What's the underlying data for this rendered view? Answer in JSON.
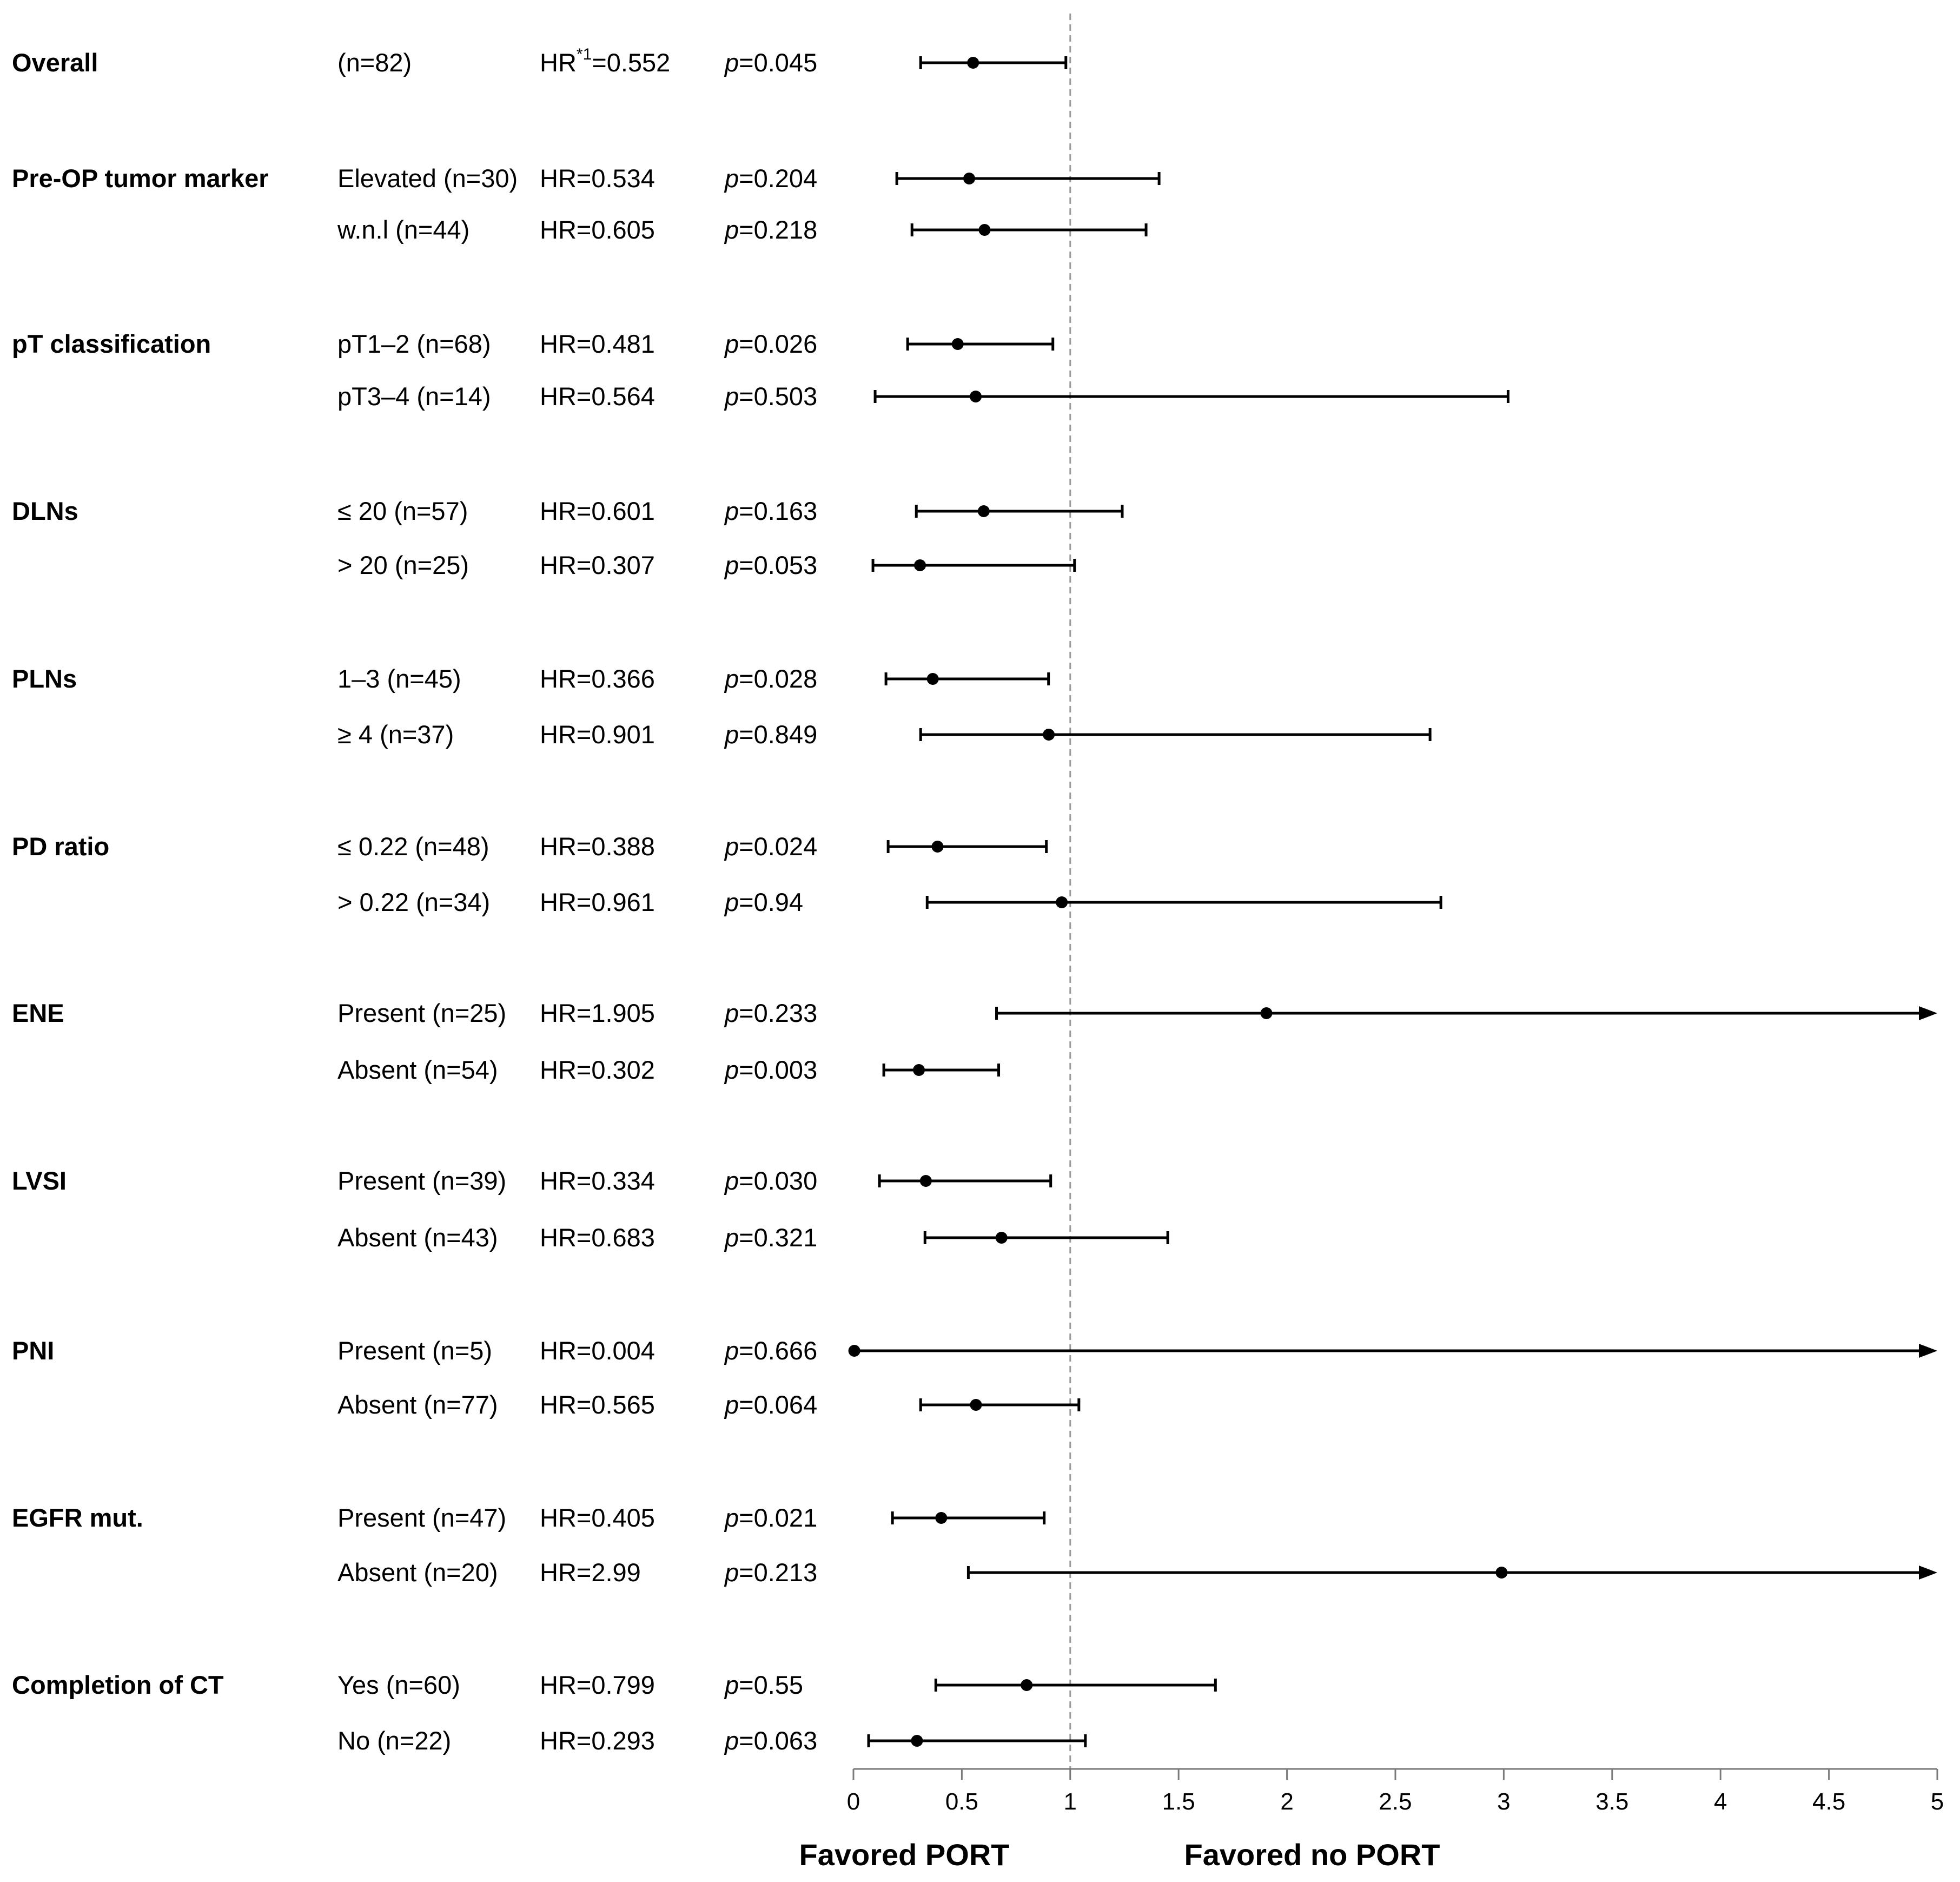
{
  "chart_data": {
    "type": "forest",
    "x_axis": {
      "min": 0,
      "max": 5,
      "ticks": [
        0,
        0.5,
        1,
        1.5,
        2,
        2.5,
        3,
        3.5,
        4,
        4.5,
        5
      ],
      "tick_labels": [
        "0",
        "0.5",
        "1",
        "1.5",
        "2",
        "2.5",
        "3",
        "3.5",
        "4",
        "4.5",
        "5"
      ],
      "reference_line": 1
    },
    "side_labels": {
      "left": "Favored PORT",
      "right": "Favored no PORT"
    },
    "hr_superscript": "*1",
    "groups": [
      {
        "label": "Overall",
        "rows": [
          {
            "subgroup": "(n=82)",
            "hr_text": "HR",
            "hr_text_after": "=0.552",
            "p_text": "=0.045",
            "hr": 0.552,
            "ci_low": 0.31,
            "ci_high": 0.98,
            "arrow": false
          }
        ]
      },
      {
        "label": "Pre-OP tumor marker",
        "rows": [
          {
            "subgroup": "Elevated (n=30)",
            "hr_text": "HR=0.534",
            "p_text": "=0.204",
            "hr": 0.534,
            "ci_low": 0.2,
            "ci_high": 1.41,
            "arrow": false
          },
          {
            "subgroup": "w.n.l (n=44)",
            "hr_text": "HR=0.605",
            "p_text": "=0.218",
            "hr": 0.605,
            "ci_low": 0.27,
            "ci_high": 1.35,
            "arrow": false
          }
        ]
      },
      {
        "label": "pT classification",
        "rows": [
          {
            "subgroup": "pT1–2 (n=68)",
            "hr_text": "HR=0.481",
            "p_text": "=0.026",
            "hr": 0.481,
            "ci_low": 0.25,
            "ci_high": 0.92,
            "arrow": false
          },
          {
            "subgroup": "pT3–4 (n=14)",
            "hr_text": "HR=0.564",
            "p_text": "=0.503",
            "hr": 0.564,
            "ci_low": 0.1,
            "ci_high": 3.02,
            "arrow": false
          }
        ]
      },
      {
        "label": "DLNs",
        "rows": [
          {
            "subgroup": "≤ 20 (n=57)",
            "hr_text": "HR=0.601",
            "p_text": "=0.163",
            "hr": 0.601,
            "ci_low": 0.29,
            "ci_high": 1.24,
            "arrow": false
          },
          {
            "subgroup": "> 20 (n=25)",
            "hr_text": "HR=0.307",
            "p_text": "=0.053",
            "hr": 0.307,
            "ci_low": 0.09,
            "ci_high": 1.02,
            "arrow": false
          }
        ]
      },
      {
        "label": "PLNs",
        "rows": [
          {
            "subgroup": "1–3 (n=45)",
            "hr_text": "HR=0.366",
            "p_text": "=0.028",
            "hr": 0.366,
            "ci_low": 0.15,
            "ci_high": 0.9,
            "arrow": false
          },
          {
            "subgroup": "≥ 4 (n=37)",
            "hr_text": "HR=0.901",
            "p_text": "=0.849",
            "hr": 0.901,
            "ci_low": 0.31,
            "ci_high": 2.66,
            "arrow": false
          }
        ]
      },
      {
        "label": "PD ratio",
        "rows": [
          {
            "subgroup": "≤ 0.22 (n=48)",
            "hr_text": "HR=0.388",
            "p_text": "=0.024",
            "hr": 0.388,
            "ci_low": 0.16,
            "ci_high": 0.89,
            "arrow": false
          },
          {
            "subgroup": "> 0.22 (n=34)",
            "hr_text": "HR=0.961",
            "p_text": "=0.94",
            "hr": 0.961,
            "ci_low": 0.34,
            "ci_high": 2.71,
            "arrow": false
          }
        ]
      },
      {
        "label": "ENE",
        "rows": [
          {
            "subgroup": "Present (n=25)",
            "hr_text": "HR=1.905",
            "p_text": "=0.233",
            "hr": 1.905,
            "ci_low": 0.66,
            "ci_high": 5,
            "arrow": true
          },
          {
            "subgroup": "Absent (n=54)",
            "hr_text": "HR=0.302",
            "p_text": "=0.003",
            "hr": 0.302,
            "ci_low": 0.14,
            "ci_high": 0.67,
            "arrow": false
          }
        ]
      },
      {
        "label": "LVSI",
        "rows": [
          {
            "subgroup": "Present (n=39)",
            "hr_text": "HR=0.334",
            "p_text": "=0.030",
            "hr": 0.334,
            "ci_low": 0.12,
            "ci_high": 0.91,
            "arrow": false
          },
          {
            "subgroup": "Absent (n=43)",
            "hr_text": "HR=0.683",
            "p_text": "=0.321",
            "hr": 0.683,
            "ci_low": 0.33,
            "ci_high": 1.45,
            "arrow": false
          }
        ]
      },
      {
        "label": "PNI",
        "rows": [
          {
            "subgroup": "Present (n=5)",
            "hr_text": "HR=0.004",
            "p_text": "=0.666",
            "hr": 0.004,
            "ci_low": 0,
            "ci_high": 5,
            "arrow": true
          },
          {
            "subgroup": "Absent (n=77)",
            "hr_text": "HR=0.565",
            "p_text": "=0.064",
            "hr": 0.565,
            "ci_low": 0.31,
            "ci_high": 1.04,
            "arrow": false
          }
        ]
      },
      {
        "label": "EGFR mut.",
        "rows": [
          {
            "subgroup": "Present (n=47)",
            "hr_text": "HR=0.405",
            "p_text": "=0.021",
            "hr": 0.405,
            "ci_low": 0.18,
            "ci_high": 0.88,
            "arrow": false
          },
          {
            "subgroup": "Absent (n=20)",
            "hr_text": "HR=2.99",
            "p_text": "=0.213",
            "hr": 2.99,
            "ci_low": 0.53,
            "ci_high": 5,
            "arrow": true
          }
        ]
      },
      {
        "label": "Completion of CT",
        "rows": [
          {
            "subgroup": "Yes (n=60)",
            "hr_text": "HR=0.799",
            "p_text": "=0.55",
            "hr": 0.799,
            "ci_low": 0.38,
            "ci_high": 1.67,
            "arrow": false
          },
          {
            "subgroup": "No (n=22)",
            "hr_text": "HR=0.293",
            "p_text": "=0.063",
            "hr": 0.293,
            "ci_low": 0.07,
            "ci_high": 1.07,
            "arrow": false
          }
        ]
      }
    ]
  }
}
